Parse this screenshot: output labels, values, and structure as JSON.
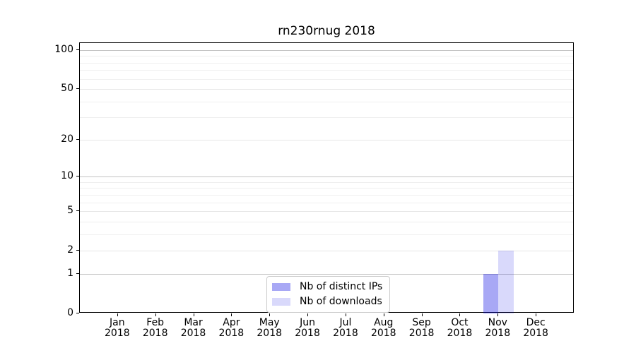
{
  "figure": {
    "background": "#ffffff"
  },
  "chart_data": {
    "type": "bar",
    "title": "rn230rnug 2018",
    "xlabel": "",
    "ylabel": "",
    "categories": [
      "Jan",
      "Feb",
      "Mar",
      "Apr",
      "May",
      "Jun",
      "Jul",
      "Aug",
      "Sep",
      "Oct",
      "Nov",
      "Dec"
    ],
    "x_tick_line2": "2018",
    "series": [
      {
        "name": "Nb of distinct IPs",
        "color": "rgba(0,0,227,0.34)",
        "values": [
          0,
          0,
          0,
          0,
          0,
          0,
          0,
          0,
          0,
          0,
          1,
          0
        ]
      },
      {
        "name": "Nb of downloads",
        "color": "rgba(0,0,227,0.15)",
        "values": [
          0,
          0,
          0,
          0,
          0,
          0,
          0,
          0,
          0,
          0,
          2,
          0
        ]
      }
    ],
    "y_scale": "log1p",
    "y_ticks": [
      0,
      1,
      2,
      5,
      10,
      20,
      50,
      100
    ],
    "y_minor_gridlines": [
      3,
      4,
      6,
      7,
      8,
      9,
      30,
      40,
      60,
      70,
      80,
      90
    ],
    "y_emphasized_gridlines": [
      1,
      10,
      100
    ],
    "ylim": [
      0,
      113
    ],
    "grid": true,
    "legend_position": "lower center"
  },
  "colors": {
    "grid_minor": "#efefef",
    "grid_major": "#e6e6e6",
    "grid_emphasized": "#c3c3c3",
    "axis_line": "#000000",
    "legend_border": "#cccccc",
    "text": "#000000"
  }
}
